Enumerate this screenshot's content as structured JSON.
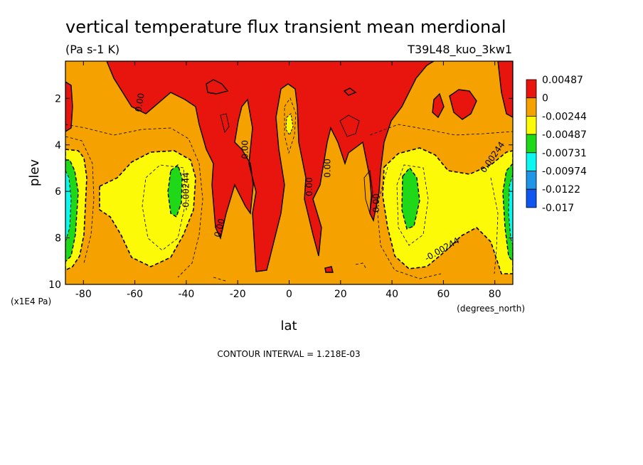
{
  "chart_data": {
    "type": "heatmap",
    "title": "vertical temperature flux transient mean merdional",
    "units": "(Pa s-1 K)",
    "run_label": "T39L48_kuo_3kw1",
    "xlabel": "lat",
    "x_units": "(degrees_north)",
    "ylabel": "plev",
    "y_units": "(x1E4 Pa)",
    "xlim": [
      -87,
      87
    ],
    "ylim": [
      10,
      0.4
    ],
    "x_ticks": [
      "-80",
      "-60",
      "-40",
      "-20",
      "0",
      "20",
      "40",
      "60",
      "80"
    ],
    "x_tick_values": [
      -80,
      -60,
      -40,
      -20,
      0,
      20,
      40,
      60,
      80
    ],
    "y_ticks": [
      "2",
      "4",
      "6",
      "8",
      "10"
    ],
    "y_tick_values": [
      2,
      4,
      6,
      8,
      10
    ],
    "contour_interval": "CONTOUR INTERVAL = 1.218E-03",
    "contour_labels": [
      {
        "text": "0.00",
        "lat": -57,
        "plev": 2.2,
        "rot": -80
      },
      {
        "text": "0.00",
        "lat": -16,
        "plev": 4.2,
        "rot": -90
      },
      {
        "text": "0.00",
        "lat": -26,
        "plev": 7.6,
        "rot": -75
      },
      {
        "text": "0.00",
        "lat": 9,
        "plev": 5.8,
        "rot": -90
      },
      {
        "text": "0.00",
        "lat": 16,
        "plev": 5.0,
        "rot": -90
      },
      {
        "text": "0.00",
        "lat": 35,
        "plev": 6.5,
        "rot": -90
      },
      {
        "text": "-0.00244",
        "lat": -39,
        "plev": 6.0,
        "rot": -90
      },
      {
        "text": "-0.00244",
        "lat": 60,
        "plev": 8.6,
        "rot": -30
      },
      {
        "text": "0.00244",
        "lat": 80,
        "plev": 4.6,
        "rot": -55
      }
    ],
    "legend": {
      "placement": "right",
      "levels": [
        "0.00487",
        "0",
        "-0.00244",
        "-0.00487",
        "-0.00731",
        "-0.00974",
        "-0.0122",
        "-0.017"
      ],
      "colors": [
        "#e8150e",
        "#f5a200",
        "#fdfa08",
        "#1fd919",
        "#0bf7f0",
        "#1e95e7",
        "#0f55f0"
      ]
    },
    "grid": false
  }
}
